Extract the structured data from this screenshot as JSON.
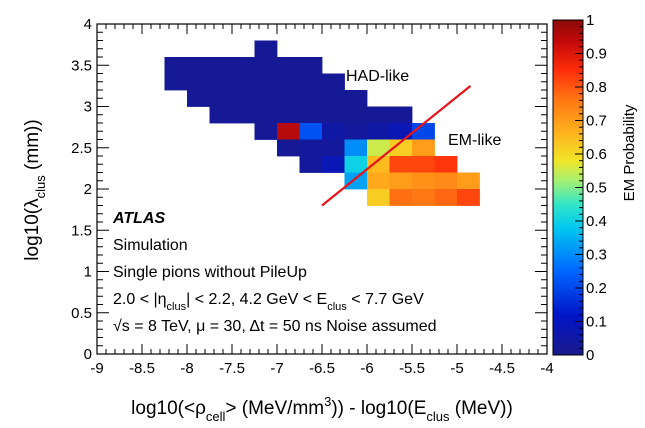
{
  "chart_data": {
    "type": "heatmap",
    "xlabel_parts": {
      "a": "log10(<ρ",
      "a_sub": "cell",
      "b": "> (MeV/mm",
      "b_sup": "3",
      "c": ")) - log10(E",
      "c_sub": "clus",
      "d": " (MeV))"
    },
    "ylabel_parts": {
      "a": "log10(λ",
      "a_sub": "clus",
      "b": " (mm))"
    },
    "zlabel": "EM Probability",
    "xlim": [
      -9,
      -4
    ],
    "ylim": [
      0,
      4
    ],
    "zlim": [
      0,
      1
    ],
    "x_ticks": [
      "-9",
      "-8.5",
      "-8",
      "-7.5",
      "-7",
      "-6.5",
      "-6",
      "-5.5",
      "-5",
      "-4.5",
      "-4"
    ],
    "y_ticks": [
      "0",
      "0.5",
      "1",
      "1.5",
      "2",
      "2.5",
      "3",
      "3.5",
      "4"
    ],
    "z_ticks": [
      "0",
      "0.1",
      "0.2",
      "0.3",
      "0.4",
      "0.5",
      "0.6",
      "0.7",
      "0.8",
      "0.9",
      "1"
    ],
    "bin_width": 0.25,
    "bin_height": 0.2,
    "cells": [
      {
        "x": -8.25,
        "y": 3.4,
        "z": 0.02
      },
      {
        "x": -8.0,
        "y": 3.4,
        "z": 0.02
      },
      {
        "x": -7.75,
        "y": 3.4,
        "z": 0.02
      },
      {
        "x": -7.5,
        "y": 3.4,
        "z": 0.02
      },
      {
        "x": -7.25,
        "y": 3.4,
        "z": 0.02
      },
      {
        "x": -7.0,
        "y": 3.4,
        "z": 0.02
      },
      {
        "x": -6.75,
        "y": 3.4,
        "z": 0.02
      },
      {
        "x": -7.25,
        "y": 3.6,
        "z": 0.02
      },
      {
        "x": -8.25,
        "y": 3.2,
        "z": 0.02
      },
      {
        "x": -8.0,
        "y": 3.2,
        "z": 0.02
      },
      {
        "x": -7.75,
        "y": 3.2,
        "z": 0.02
      },
      {
        "x": -7.5,
        "y": 3.2,
        "z": 0.02
      },
      {
        "x": -7.25,
        "y": 3.2,
        "z": 0.02
      },
      {
        "x": -7.0,
        "y": 3.2,
        "z": 0.02
      },
      {
        "x": -6.75,
        "y": 3.2,
        "z": 0.02
      },
      {
        "x": -6.5,
        "y": 3.2,
        "z": 0.02
      },
      {
        "x": -8.0,
        "y": 3.0,
        "z": 0.02
      },
      {
        "x": -7.75,
        "y": 3.0,
        "z": 0.02
      },
      {
        "x": -7.5,
        "y": 3.0,
        "z": 0.02
      },
      {
        "x": -7.25,
        "y": 3.0,
        "z": 0.02
      },
      {
        "x": -7.0,
        "y": 3.0,
        "z": 0.02
      },
      {
        "x": -6.75,
        "y": 3.0,
        "z": 0.02
      },
      {
        "x": -6.5,
        "y": 3.0,
        "z": 0.02
      },
      {
        "x": -6.25,
        "y": 3.0,
        "z": 0.02
      },
      {
        "x": -7.75,
        "y": 2.8,
        "z": 0.02
      },
      {
        "x": -7.5,
        "y": 2.8,
        "z": 0.02
      },
      {
        "x": -7.25,
        "y": 2.8,
        "z": 0.02
      },
      {
        "x": -7.0,
        "y": 2.8,
        "z": 0.02
      },
      {
        "x": -6.75,
        "y": 2.8,
        "z": 0.02
      },
      {
        "x": -6.5,
        "y": 2.8,
        "z": 0.02
      },
      {
        "x": -6.25,
        "y": 2.8,
        "z": 0.02
      },
      {
        "x": -6.0,
        "y": 2.8,
        "z": 0.02
      },
      {
        "x": -5.75,
        "y": 2.8,
        "z": 0.02
      },
      {
        "x": -7.25,
        "y": 2.6,
        "z": 0.02
      },
      {
        "x": -7.0,
        "y": 2.6,
        "z": 0.95
      },
      {
        "x": -6.75,
        "y": 2.6,
        "z": 0.22
      },
      {
        "x": -6.5,
        "y": 2.6,
        "z": 0.05
      },
      {
        "x": -6.25,
        "y": 2.6,
        "z": 0.03
      },
      {
        "x": -6.0,
        "y": 2.6,
        "z": 0.05
      },
      {
        "x": -5.75,
        "y": 2.6,
        "z": 0.08
      },
      {
        "x": -5.5,
        "y": 2.6,
        "z": 0.2
      },
      {
        "x": -7.0,
        "y": 2.4,
        "z": 0.02
      },
      {
        "x": -6.75,
        "y": 2.4,
        "z": 0.03
      },
      {
        "x": -6.5,
        "y": 2.4,
        "z": 0.03
      },
      {
        "x": -6.25,
        "y": 2.4,
        "z": 0.3
      },
      {
        "x": -6.0,
        "y": 2.4,
        "z": 0.55
      },
      {
        "x": -5.75,
        "y": 2.4,
        "z": 0.62
      },
      {
        "x": -5.5,
        "y": 2.4,
        "z": 0.7
      },
      {
        "x": -6.75,
        "y": 2.2,
        "z": 0.03
      },
      {
        "x": -6.5,
        "y": 2.2,
        "z": 0.08
      },
      {
        "x": -6.25,
        "y": 2.2,
        "z": 0.4
      },
      {
        "x": -6.0,
        "y": 2.2,
        "z": 0.65
      },
      {
        "x": -5.75,
        "y": 2.2,
        "z": 0.82
      },
      {
        "x": -5.5,
        "y": 2.2,
        "z": 0.82
      },
      {
        "x": -5.25,
        "y": 2.2,
        "z": 0.84
      },
      {
        "x": -6.25,
        "y": 2.0,
        "z": 0.33
      },
      {
        "x": -6.0,
        "y": 2.0,
        "z": 0.68
      },
      {
        "x": -5.75,
        "y": 2.0,
        "z": 0.7
      },
      {
        "x": -5.5,
        "y": 2.0,
        "z": 0.72
      },
      {
        "x": -5.25,
        "y": 2.0,
        "z": 0.73
      },
      {
        "x": -5.0,
        "y": 2.0,
        "z": 0.7
      },
      {
        "x": -6.0,
        "y": 1.8,
        "z": 0.62
      },
      {
        "x": -5.75,
        "y": 1.8,
        "z": 0.77
      },
      {
        "x": -5.5,
        "y": 1.8,
        "z": 0.76
      },
      {
        "x": -5.25,
        "y": 1.8,
        "z": 0.78
      },
      {
        "x": -5.0,
        "y": 1.8,
        "z": 0.82
      }
    ],
    "separator_line": {
      "x": [
        -6.5,
        -4.85
      ],
      "y": [
        1.8,
        3.25
      ],
      "color": "#e8141a"
    },
    "region_labels": {
      "had": "HAD-like",
      "em": "EM-like"
    },
    "atlas": {
      "brand": "ATLAS",
      "line1": "Simulation",
      "line2": "Single pions without PileUp",
      "eta_a": "2.0 < |η",
      "eta_sub": "clus",
      "eta_b": "| < 2.2, 4.2 GeV < E",
      "e_sub": "clus",
      "eta_c": " < 7.7 GeV",
      "s_sym": "√",
      "s_text": "s = 8 TeV, μ = 30, Δt = 50 ns Noise assumed"
    }
  }
}
